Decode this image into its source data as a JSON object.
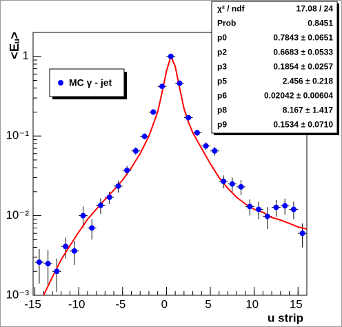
{
  "chart_data": {
    "type": "scatter",
    "x_label": "u strip",
    "y_label": "<Eᵤ>",
    "xlim": [
      -15.2,
      16
    ],
    "xticks": [
      -15,
      -10,
      -5,
      0,
      5,
      10,
      15
    ],
    "ylim": [
      0.001,
      2
    ],
    "log_y": true,
    "yticks": [
      {
        "value": 0.001,
        "label": "10⁻³"
      },
      {
        "value": 0.01,
        "label": "10⁻²"
      },
      {
        "value": 0.1,
        "label": "10⁻¹"
      },
      1
    ],
    "legend": "upper left",
    "series": [
      {
        "name": "MC γ - jet",
        "color": "#0000ff",
        "xerr": 0.5,
        "x": [
          -14.5,
          -13.5,
          -12.5,
          -11.5,
          -10.5,
          -9.5,
          -8.5,
          -7.5,
          -6.5,
          -5.5,
          -4.5,
          -3.5,
          -2.5,
          -1.5,
          -0.5,
          0.5,
          1.5,
          2.5,
          3.5,
          4.5,
          5.5,
          6.5,
          7.5,
          8.5,
          9.5,
          10.5,
          11.5,
          12.5,
          13.5,
          14.5,
          15.5
        ],
        "values": [
          0.0026,
          0.0025,
          0.002,
          0.0041,
          0.0036,
          0.01,
          0.007,
          0.0135,
          0.017,
          0.0235,
          0.037,
          0.065,
          0.099,
          0.2,
          0.42,
          1.0,
          0.46,
          0.17,
          0.11,
          0.075,
          0.065,
          0.027,
          0.025,
          0.023,
          0.013,
          0.012,
          0.0098,
          0.0127,
          0.0133,
          0.012,
          0.006
        ],
        "yerr": [
          0.0012,
          0.0012,
          0.0009,
          0.0012,
          0.0012,
          0.003,
          0.002,
          0.003,
          0.003,
          0.004,
          0.005,
          0.007,
          0.008,
          0.012,
          0.02,
          0.03,
          0.02,
          0.012,
          0.01,
          0.008,
          0.008,
          0.005,
          0.005,
          0.005,
          0.003,
          0.003,
          0.003,
          0.003,
          0.003,
          0.003,
          0.002
        ]
      }
    ],
    "fit": {
      "color": "#ff0000",
      "x": [
        -14,
        -13,
        -12,
        -11,
        -10,
        -9,
        -8,
        -7,
        -6,
        -5,
        -4,
        -3,
        -2,
        -1,
        -0.5,
        0,
        0.5,
        1,
        1.5,
        2,
        2.5,
        3,
        4,
        5,
        6,
        7,
        8,
        9,
        10,
        11,
        12,
        13,
        14,
        15,
        16
      ],
      "y": [
        0.001,
        0.0017,
        0.0028,
        0.0042,
        0.0062,
        0.009,
        0.012,
        0.016,
        0.021,
        0.028,
        0.04,
        0.06,
        0.1,
        0.2,
        0.35,
        0.65,
        1.0,
        0.75,
        0.4,
        0.22,
        0.15,
        0.11,
        0.07,
        0.045,
        0.03,
        0.022,
        0.017,
        0.014,
        0.012,
        0.011,
        0.0095,
        0.0088,
        0.008,
        0.0072,
        0.0068
      ]
    },
    "stats": {
      "rows": [
        [
          "χ² / ndf",
          "17.08 / 24"
        ],
        [
          "Prob",
          "0.8451"
        ],
        [
          "p0",
          "0.7843 ± 0.0651"
        ],
        [
          "p2",
          "0.6683 ± 0.0533"
        ],
        [
          "p3",
          "0.1854 ± 0.0257"
        ],
        [
          "p5",
          "2.456 ± 0.218"
        ],
        [
          "p6",
          "0.02042 ± 0.00604"
        ],
        [
          "p8",
          "8.167 ± 1.417"
        ],
        [
          "p9",
          "0.1534 ± 0.0710"
        ]
      ]
    }
  }
}
